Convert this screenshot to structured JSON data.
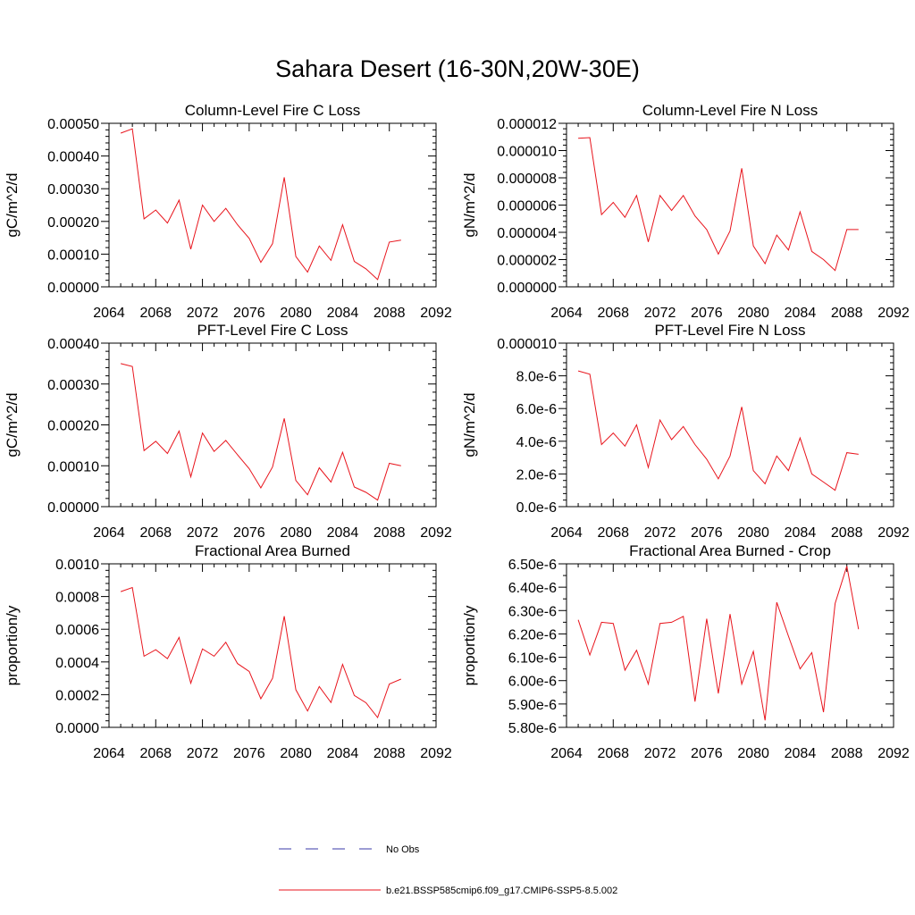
{
  "figure": {
    "title": "Sahara Desert (16-30N,20W-30E)"
  },
  "legend": [
    {
      "label": "No Obs",
      "color": "#3a3aa8",
      "dash": true
    },
    {
      "label": "b.e21.BSSP585cmip6.f09_g17.CMIP6-SSP5-8.5.002",
      "color": "#e8141c",
      "dash": false
    }
  ],
  "chart_data": [
    {
      "type": "line",
      "title": "Column-Level Fire C Loss",
      "ylabel": "gC/m^2/d",
      "xlim": [
        2064,
        2092
      ],
      "ylim": [
        0,
        0.0005
      ],
      "x_tick_labels": [
        "2064",
        "2068",
        "2072",
        "2076",
        "2080",
        "2084",
        "2088",
        "2092"
      ],
      "y_tick_labels": [
        "0.00000",
        "0.00010",
        "0.00020",
        "0.00030",
        "0.00040",
        "0.00050"
      ],
      "series": [
        {
          "color": "#e8141c",
          "x": [
            2065,
            2066,
            2067,
            2068,
            2069,
            2070,
            2071,
            2072,
            2073,
            2074,
            2075,
            2076,
            2077,
            2078,
            2079,
            2080,
            2081,
            2082,
            2083,
            2084,
            2085,
            2086,
            2087,
            2088,
            2089
          ],
          "values": [
            0.00047,
            0.000483,
            0.000208,
            0.000235,
            0.000195,
            0.000265,
            0.000115,
            0.00025,
            0.0002,
            0.00024,
            0.00019,
            0.000148,
            7.5e-05,
            0.000132,
            0.000335,
            9.3e-05,
            4.5e-05,
            0.000125,
            8.1e-05,
            0.00019,
            7.8e-05,
            5.5e-05,
            2.2e-05,
            0.000137,
            0.000143
          ]
        }
      ]
    },
    {
      "type": "line",
      "title": "Column-Level Fire N Loss",
      "ylabel": "gN/m^2/d",
      "xlim": [
        2064,
        2092
      ],
      "ylim": [
        0,
        1.2e-05
      ],
      "x_tick_labels": [
        "2064",
        "2068",
        "2072",
        "2076",
        "2080",
        "2084",
        "2088",
        "2092"
      ],
      "y_tick_labels": [
        "0.000000",
        "0.000002",
        "0.000004",
        "0.000006",
        "0.000008",
        "0.000010",
        "0.000012"
      ],
      "series": [
        {
          "color": "#e8141c",
          "x": [
            2065,
            2066,
            2067,
            2068,
            2069,
            2070,
            2071,
            2072,
            2073,
            2074,
            2075,
            2076,
            2077,
            2078,
            2079,
            2080,
            2081,
            2082,
            2083,
            2084,
            2085,
            2086,
            2087,
            2088,
            2089
          ],
          "values": [
            1.09e-05,
            1.095e-05,
            5.3e-06,
            6.2e-06,
            5.1e-06,
            6.7e-06,
            3.3e-06,
            6.7e-06,
            5.6e-06,
            6.7e-06,
            5.2e-06,
            4.2e-06,
            2.4e-06,
            4.1e-06,
            8.7e-06,
            3e-06,
            1.7e-06,
            3.8e-06,
            2.7e-06,
            5.5e-06,
            2.6e-06,
            2e-06,
            1.2e-06,
            4.2e-06,
            4.2e-06
          ]
        }
      ]
    },
    {
      "type": "line",
      "title": "PFT-Level Fire C Loss",
      "ylabel": "gC/m^2/d",
      "xlim": [
        2064,
        2092
      ],
      "ylim": [
        0,
        0.0004
      ],
      "x_tick_labels": [
        "2064",
        "2068",
        "2072",
        "2076",
        "2080",
        "2084",
        "2088",
        "2092"
      ],
      "y_tick_labels": [
        "0.00000",
        "0.00010",
        "0.00020",
        "0.00030",
        "0.00040"
      ],
      "series": [
        {
          "color": "#e8141c",
          "x": [
            2065,
            2066,
            2067,
            2068,
            2069,
            2070,
            2071,
            2072,
            2073,
            2074,
            2075,
            2076,
            2077,
            2078,
            2079,
            2080,
            2081,
            2082,
            2083,
            2084,
            2085,
            2086,
            2087,
            2088,
            2089
          ],
          "values": [
            0.00035,
            0.000343,
            0.000137,
            0.00016,
            0.00013,
            0.000185,
            7.3e-05,
            0.00018,
            0.000135,
            0.000162,
            0.000127,
            9.3e-05,
            4.6e-05,
            9.7e-05,
            0.000216,
            6.4e-05,
            2.9e-05,
            9.5e-05,
            6e-05,
            0.000133,
            4.8e-05,
            3.5e-05,
            1.6e-05,
            0.000106,
            0.0001
          ]
        }
      ]
    },
    {
      "type": "line",
      "title": "PFT-Level Fire N Loss",
      "ylabel": "gN/m^2/d",
      "xlim": [
        2064,
        2092
      ],
      "ylim": [
        0,
        1e-05
      ],
      "x_tick_labels": [
        "2064",
        "2068",
        "2072",
        "2076",
        "2080",
        "2084",
        "2088",
        "2092"
      ],
      "y_tick_labels": [
        "0.0e-6",
        "2.0e-6",
        "4.0e-6",
        "6.0e-6",
        "8.0e-6",
        "0.000010"
      ],
      "series": [
        {
          "color": "#e8141c",
          "x": [
            2065,
            2066,
            2067,
            2068,
            2069,
            2070,
            2071,
            2072,
            2073,
            2074,
            2075,
            2076,
            2077,
            2078,
            2079,
            2080,
            2081,
            2082,
            2083,
            2084,
            2085,
            2086,
            2087,
            2088,
            2089
          ],
          "values": [
            8.3e-06,
            8.1e-06,
            3.8e-06,
            4.5e-06,
            3.7e-06,
            5e-06,
            2.4e-06,
            5.3e-06,
            4.1e-06,
            4.9e-06,
            3.8e-06,
            2.9e-06,
            1.7e-06,
            3.1e-06,
            6.1e-06,
            2.2e-06,
            1.4e-06,
            3.1e-06,
            2.2e-06,
            4.2e-06,
            2e-06,
            1.5e-06,
            1e-06,
            3.3e-06,
            3.2e-06
          ]
        }
      ]
    },
    {
      "type": "line",
      "title": "Fractional Area Burned",
      "ylabel": "proportion/y",
      "xlim": [
        2064,
        2092
      ],
      "ylim": [
        0,
        0.001
      ],
      "x_tick_labels": [
        "2064",
        "2068",
        "2072",
        "2076",
        "2080",
        "2084",
        "2088",
        "2092"
      ],
      "y_tick_labels": [
        "0.0000",
        "0.0002",
        "0.0004",
        "0.0006",
        "0.0008",
        "0.0010"
      ],
      "series": [
        {
          "color": "#e8141c",
          "x": [
            2065,
            2066,
            2067,
            2068,
            2069,
            2070,
            2071,
            2072,
            2073,
            2074,
            2075,
            2076,
            2077,
            2078,
            2079,
            2080,
            2081,
            2082,
            2083,
            2084,
            2085,
            2086,
            2087,
            2088,
            2089
          ],
          "values": [
            0.00083,
            0.000855,
            0.000435,
            0.000475,
            0.00042,
            0.00055,
            0.00027,
            0.00048,
            0.000435,
            0.00052,
            0.00039,
            0.000342,
            0.000175,
            0.0003,
            0.00068,
            0.00023,
            0.0001,
            0.00025,
            0.000152,
            0.000385,
            0.000195,
            0.00015,
            6e-05,
            0.000265,
            0.000295
          ]
        }
      ]
    },
    {
      "type": "line",
      "title": "Fractional Area Burned - Crop",
      "ylabel": "proportion/y",
      "xlim": [
        2064,
        2092
      ],
      "ylim": [
        5.8e-06,
        6.5e-06
      ],
      "x_tick_labels": [
        "2064",
        "2068",
        "2072",
        "2076",
        "2080",
        "2084",
        "2088",
        "2092"
      ],
      "y_tick_labels": [
        "5.80e-6",
        "5.90e-6",
        "6.00e-6",
        "6.10e-6",
        "6.20e-6",
        "6.30e-6",
        "6.40e-6",
        "6.50e-6"
      ],
      "series": [
        {
          "color": "#e8141c",
          "x": [
            2065,
            2066,
            2067,
            2068,
            2069,
            2070,
            2071,
            2072,
            2073,
            2074,
            2075,
            2076,
            2077,
            2078,
            2079,
            2080,
            2081,
            2082,
            2083,
            2084,
            2085,
            2086,
            2087,
            2088,
            2089
          ],
          "values": [
            6.26e-06,
            6.11e-06,
            6.25e-06,
            6.245e-06,
            6.045e-06,
            6.13e-06,
            5.985e-06,
            6.245e-06,
            6.25e-06,
            6.275e-06,
            5.91e-06,
            6.265e-06,
            5.945e-06,
            6.285e-06,
            5.985e-06,
            6.125e-06,
            5.83e-06,
            6.335e-06,
            6.19e-06,
            6.05e-06,
            6.12e-06,
            5.865e-06,
            6.33e-06,
            6.49e-06,
            6.22e-06
          ]
        }
      ]
    }
  ]
}
